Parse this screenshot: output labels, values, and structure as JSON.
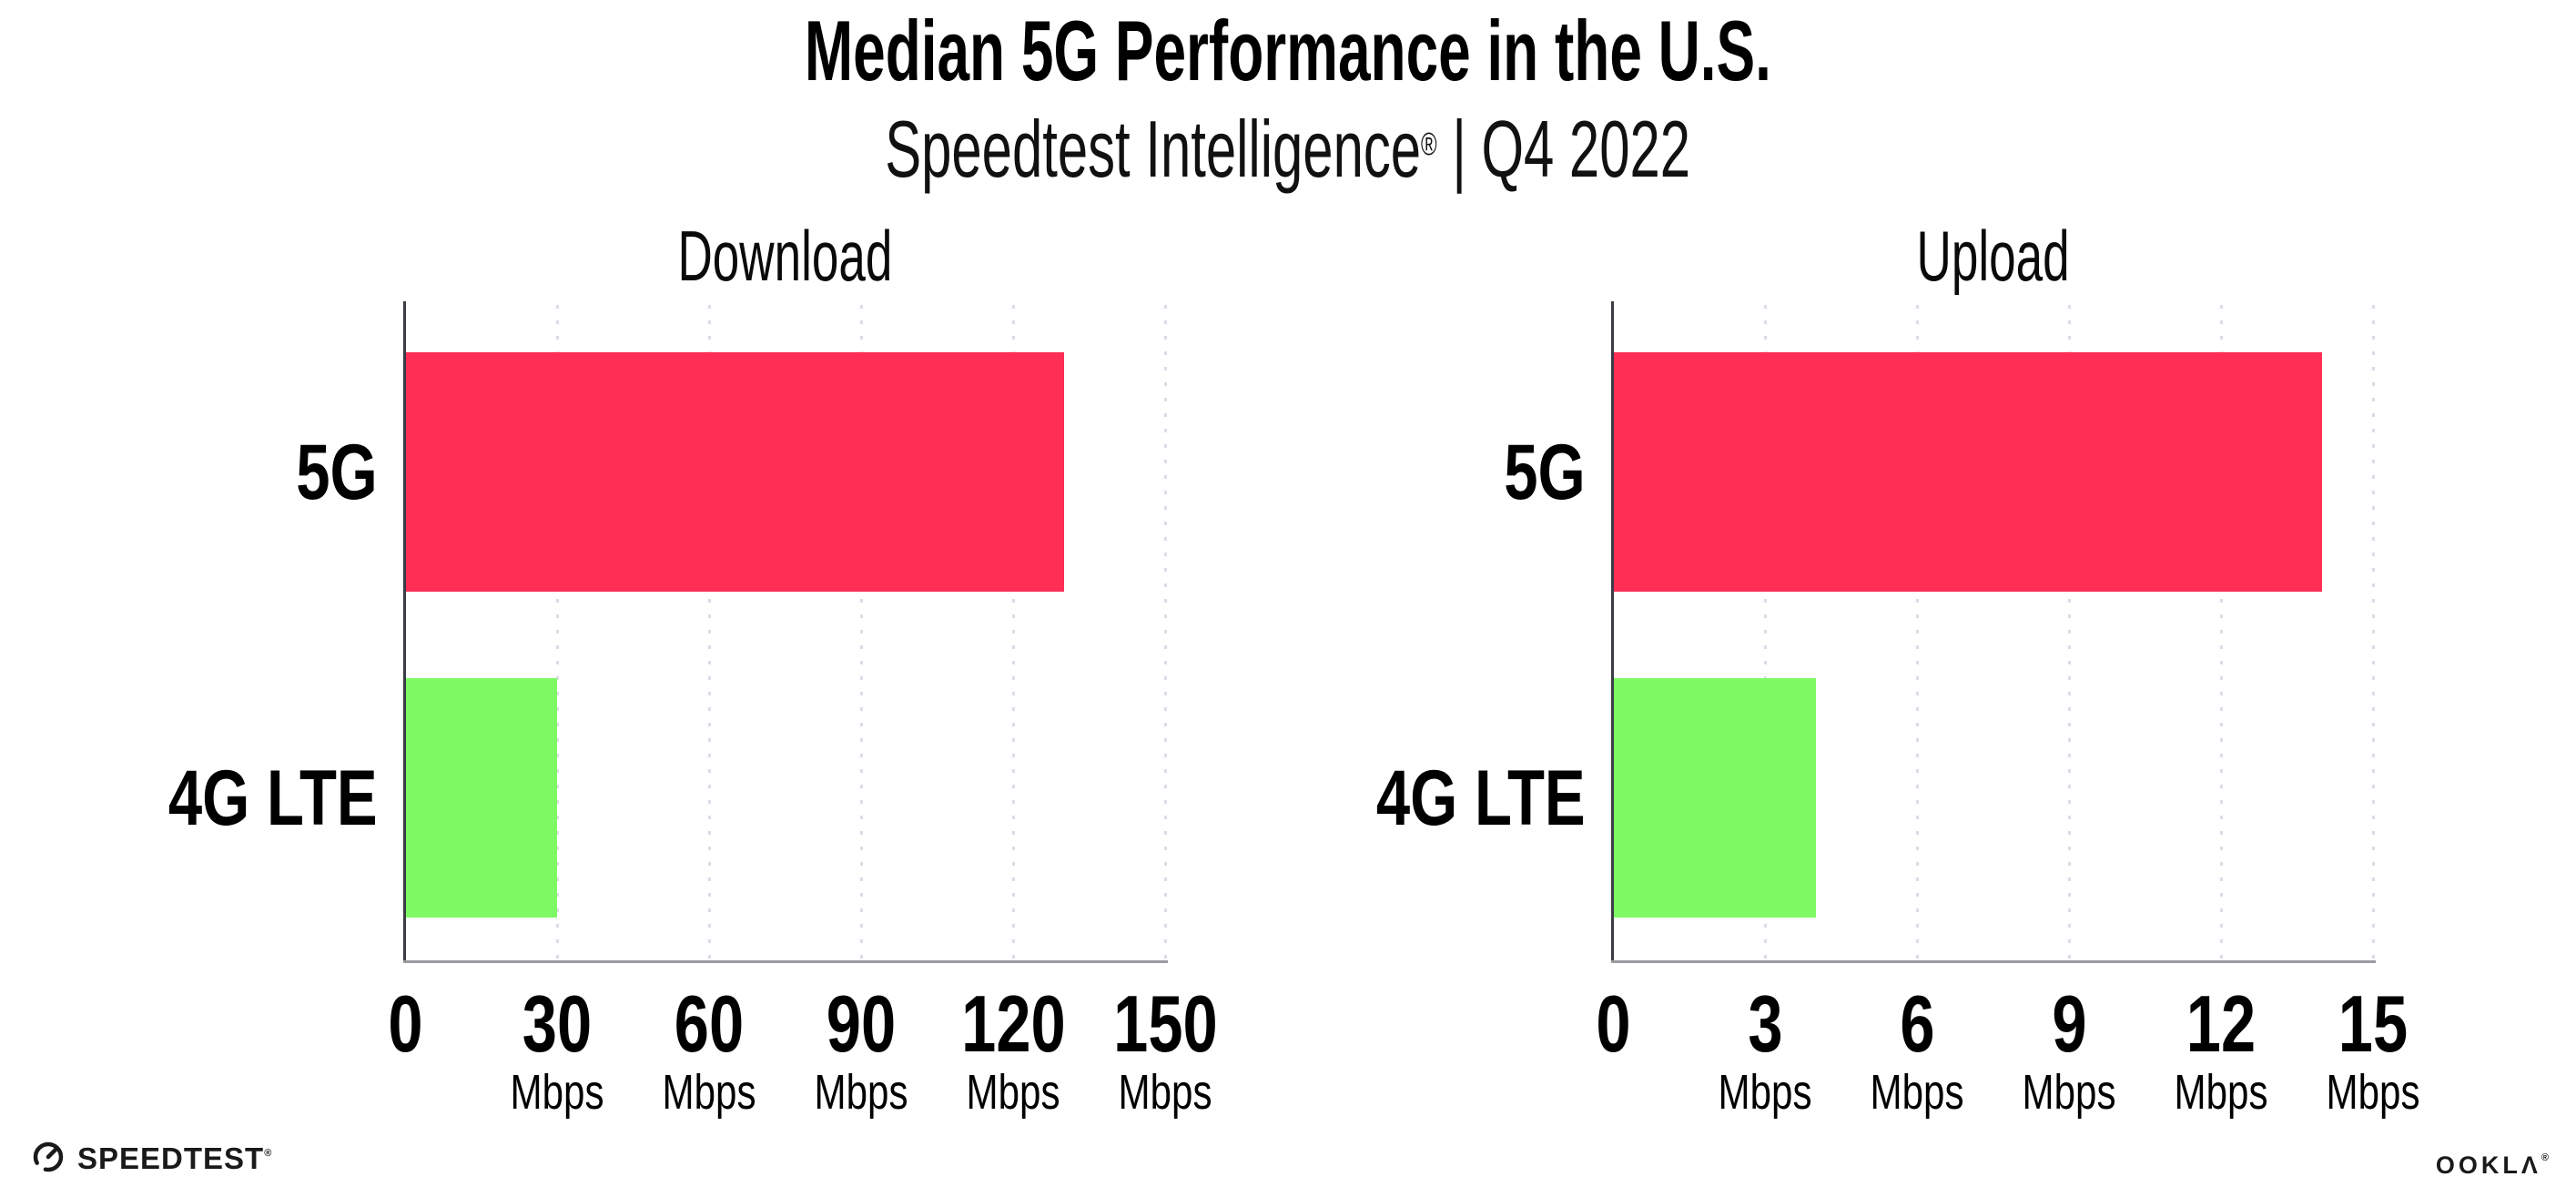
{
  "header": {
    "title": "Median 5G Performance in the U.S.",
    "subtitle_brand": "Speedtest Intelligence",
    "subtitle_mark": "®",
    "subtitle_rest": " | Q4 2022"
  },
  "chart_data": [
    {
      "type": "bar",
      "orientation": "horizontal",
      "title": "Download",
      "categories": [
        "5G",
        "4G LTE"
      ],
      "values": [
        130,
        30
      ],
      "unit": "Mbps",
      "xlim": [
        0,
        150
      ],
      "xticks": [
        0,
        30,
        60,
        90,
        120,
        150
      ],
      "grid": "vertical-dotted",
      "legend": "none",
      "bar_colors": [
        "#ff2e55",
        "#7dfa64"
      ]
    },
    {
      "type": "bar",
      "orientation": "horizontal",
      "title": "Upload",
      "categories": [
        "5G",
        "4G LTE"
      ],
      "values": [
        14,
        4
      ],
      "unit": "Mbps",
      "xlim": [
        0,
        15
      ],
      "xticks": [
        0,
        3,
        6,
        9,
        12,
        15
      ],
      "grid": "vertical-dotted",
      "legend": "none",
      "bar_colors": [
        "#ff2e55",
        "#7dfa64"
      ]
    }
  ],
  "colors": {
    "bar_5g": "#ff2e55",
    "bar_4g_lte": "#7dfa64",
    "gridline": "#dcdce8",
    "y_axis": "#3b3b45",
    "x_axis": "#9b9ba1",
    "text": "#000000",
    "background": "#ffffff"
  },
  "footer": {
    "speedtest_logo_text": "SPEEDTEST",
    "speedtest_mark": "®",
    "ookla_logo_text": "OOKLΛ",
    "ookla_mark": "®"
  }
}
